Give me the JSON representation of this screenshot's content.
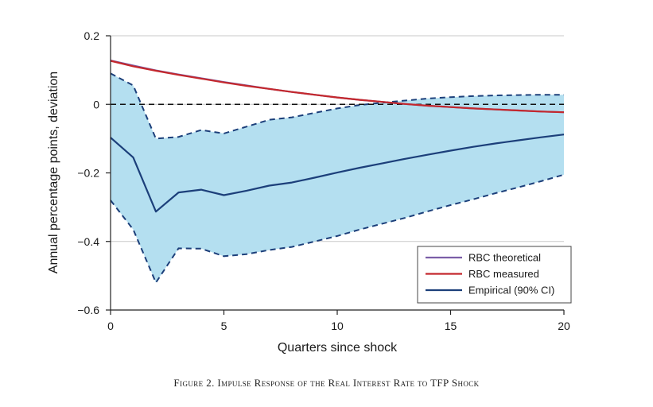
{
  "chart_data": {
    "type": "line",
    "title": "",
    "xlabel": "Quarters since shock",
    "ylabel": "Annual percentage points, deviation",
    "xlim": [
      0,
      20
    ],
    "ylim": [
      -0.6,
      0.2
    ],
    "x_ticks": [
      0,
      5,
      10,
      15,
      20
    ],
    "x_tick_labels": [
      "0",
      "5",
      "10",
      "15",
      "20"
    ],
    "y_ticks": [
      0.2,
      0,
      -0.2,
      -0.4,
      -0.6
    ],
    "y_tick_labels": [
      "0.2",
      "0",
      "−0.2",
      "−0.4",
      "−0.6"
    ],
    "grid": "horizontal",
    "legend_position": "bottom-right",
    "x": [
      0,
      1,
      2,
      3,
      4,
      5,
      6,
      7,
      8,
      9,
      10,
      11,
      12,
      13,
      14,
      15,
      16,
      17,
      18,
      19,
      20
    ],
    "series": [
      {
        "name": "RBC theoretical",
        "color": "#7b5ea7",
        "values": [
          0.128,
          0.113,
          0.099,
          0.087,
          0.076,
          0.065,
          0.055,
          0.045,
          0.036,
          0.028,
          0.02,
          0.013,
          0.007,
          0.001,
          -0.004,
          -0.008,
          -0.012,
          -0.015,
          -0.018,
          -0.021,
          -0.023
        ]
      },
      {
        "name": "RBC measured",
        "color": "#c4282d",
        "values": [
          0.127,
          0.111,
          0.098,
          0.086,
          0.075,
          0.064,
          0.054,
          0.045,
          0.036,
          0.028,
          0.02,
          0.013,
          0.007,
          0.001,
          -0.004,
          -0.008,
          -0.012,
          -0.015,
          -0.018,
          -0.021,
          -0.023
        ]
      },
      {
        "name": "Empirical (90% CI)",
        "color": "#1c3f7a",
        "values": [
          -0.097,
          -0.155,
          -0.313,
          -0.257,
          -0.249,
          -0.265,
          -0.252,
          -0.237,
          -0.228,
          -0.214,
          -0.199,
          -0.185,
          -0.172,
          -0.159,
          -0.147,
          -0.135,
          -0.124,
          -0.114,
          -0.105,
          -0.096,
          -0.088
        ]
      }
    ],
    "ci_upper": [
      0.09,
      0.055,
      -0.1,
      -0.095,
      -0.075,
      -0.085,
      -0.065,
      -0.045,
      -0.038,
      -0.025,
      -0.012,
      -0.002,
      0.005,
      0.011,
      0.017,
      0.021,
      0.024,
      0.026,
      0.027,
      0.028,
      0.028
    ],
    "ci_lower": [
      -0.28,
      -0.365,
      -0.52,
      -0.42,
      -0.421,
      -0.443,
      -0.437,
      -0.425,
      -0.416,
      -0.4,
      -0.384,
      -0.365,
      -0.348,
      -0.331,
      -0.312,
      -0.294,
      -0.277,
      -0.259,
      -0.242,
      -0.224,
      -0.205
    ],
    "ci_color": "#b4dff0",
    "ci_line_color": "#1c3f7a",
    "reference_line": {
      "y": 0,
      "style": "dashed",
      "color": "#111111"
    }
  },
  "caption": "Figure 2. Impulse Response of the Real Interest Rate to TFP Shock"
}
